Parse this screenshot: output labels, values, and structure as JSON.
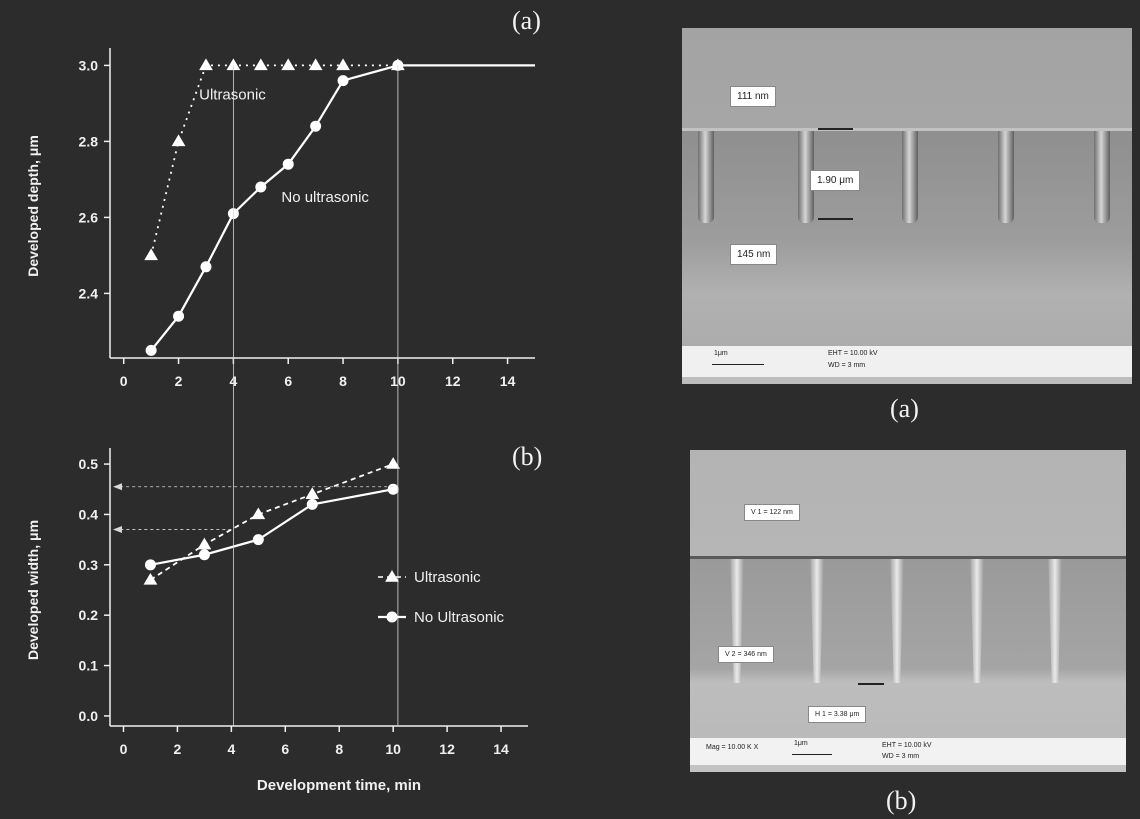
{
  "chart_data": [
    {
      "type": "line",
      "panel": "(a)",
      "xlabel": "",
      "ylabel": "Developed depth, μm",
      "xlim": [
        -0.5,
        15
      ],
      "ylim": [
        2.23,
        3.03
      ],
      "xticks": [
        0,
        2,
        4,
        6,
        8,
        10,
        12,
        14
      ],
      "yticks": [
        2.4,
        2.6,
        2.8,
        3.0
      ],
      "ytick_labels": [
        "2.4",
        "2.6",
        "2.8",
        "3.0"
      ],
      "grid": false,
      "series": [
        {
          "name": "Ultrasonic",
          "marker": "triangle",
          "style": "dotted",
          "x": [
            1,
            2,
            3,
            4,
            5,
            6,
            7,
            8,
            10
          ],
          "y": [
            2.5,
            2.8,
            3.0,
            3.0,
            3.0,
            3.0,
            3.0,
            3.0,
            3.0
          ]
        },
        {
          "name": "No ultrasonic",
          "marker": "circle",
          "style": "solid",
          "x": [
            1,
            2,
            3,
            4,
            5,
            6,
            7,
            8,
            10,
            15
          ],
          "y": [
            2.25,
            2.34,
            2.47,
            2.61,
            2.68,
            2.74,
            2.84,
            2.96,
            3.0,
            3.0
          ]
        }
      ],
      "annotations": [
        "Ultrasonic",
        "No ultrasonic"
      ]
    },
    {
      "type": "line",
      "panel": "(b)",
      "xlabel": "Development time, min",
      "ylabel": "Developed width, μm",
      "xlim": [
        -0.5,
        15
      ],
      "ylim": [
        -0.02,
        0.52
      ],
      "xticks": [
        0,
        2,
        4,
        6,
        8,
        10,
        12,
        14
      ],
      "yticks": [
        0.0,
        0.1,
        0.2,
        0.3,
        0.4,
        0.5
      ],
      "ytick_labels": [
        "0.0",
        "0.1",
        "0.2",
        "0.3",
        "0.4",
        "0.5"
      ],
      "grid": false,
      "legend": "center-right",
      "series": [
        {
          "name": "Ultrasonic",
          "marker": "triangle",
          "style": "dashed",
          "x": [
            1,
            3,
            5,
            7,
            10
          ],
          "y": [
            0.27,
            0.34,
            0.4,
            0.44,
            0.5
          ]
        },
        {
          "name": "No Ultrasonic",
          "marker": "circle",
          "style": "solid",
          "x": [
            1,
            3,
            5,
            7,
            10
          ],
          "y": [
            0.3,
            0.32,
            0.35,
            0.42,
            0.45
          ]
        }
      ],
      "reference_lines": {
        "vertical_x": [
          4,
          10
        ],
        "horizontal_y": [
          0.37,
          0.455
        ]
      }
    }
  ],
  "images": {
    "a": {
      "caption": "(a)",
      "labels": [
        "111 nm",
        "1.90 μm",
        "145 nm"
      ],
      "scale": "1μm",
      "meta": [
        "EHT = 10.00 kV",
        "WD = 3 mm"
      ]
    },
    "b": {
      "caption": "(b)",
      "labels": [
        "V 1 = 122 nm",
        "V 2 = 346 nm",
        "H 1 = 3.38 μm"
      ],
      "scale": "1μm",
      "meta": [
        "Mag = 10.00 K X",
        "EHT = 10.00 kV",
        "WD = 3 mm"
      ]
    }
  }
}
